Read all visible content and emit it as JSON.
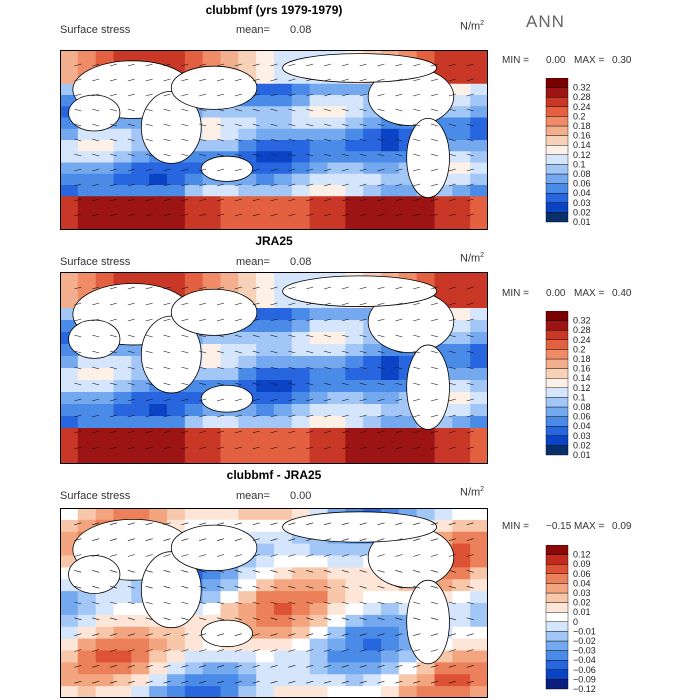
{
  "season": "ANN",
  "colormaps": {
    "pos": [
      "#08306b",
      "#0a44c4",
      "#2866e0",
      "#4a8be8",
      "#74a9f0",
      "#a2c6f6",
      "#d5e5fb",
      "#fdf0e6",
      "#f8d2b8",
      "#f3af8d",
      "#ef8b66",
      "#e36140",
      "#c93726",
      "#9c1414",
      "#7a0000"
    ],
    "diff": [
      "#0a1e80",
      "#0a44c4",
      "#2866e0",
      "#4a8be8",
      "#74a9f0",
      "#a2c6f6",
      "#d5e5fb",
      "#ffffff",
      "#fde6d8",
      "#f8c7aa",
      "#f3a57f",
      "#ec805a",
      "#dd5235",
      "#c22a1e",
      "#8a0808"
    ]
  },
  "chart_data": [
    {
      "type": "heatmap",
      "title": "clubbmf (yrs 1979-1979)",
      "variable": "Surface stress",
      "mean_label": "mean=",
      "mean": "0.08",
      "units": "N/m",
      "units_sup": "2",
      "min_label": "MIN =",
      "min": "0.00",
      "max_label": "MAX =",
      "max": "0.30",
      "colormap": "pos",
      "levels": [
        "0.01",
        "0.02",
        "0.03",
        "0.04",
        "0.06",
        "0.08",
        "0.1",
        "0.12",
        "0.14",
        "0.16",
        "0.18",
        "0.2",
        "0.24",
        "0.28",
        "0.32"
      ]
    },
    {
      "type": "heatmap",
      "title": "JRA25",
      "variable": "Surface stress",
      "mean_label": "mean=",
      "mean": "0.08",
      "units": "N/m",
      "units_sup": "2",
      "min_label": "MIN =",
      "min": "0.00",
      "max_label": "MAX =",
      "max": "0.40",
      "colormap": "pos",
      "levels": [
        "0.01",
        "0.02",
        "0.03",
        "0.04",
        "0.06",
        "0.08",
        "0.1",
        "0.12",
        "0.14",
        "0.16",
        "0.18",
        "0.2",
        "0.24",
        "0.28",
        "0.32"
      ]
    },
    {
      "type": "heatmap",
      "title": "clubbmf - JRA25",
      "variable": "Surface stress",
      "mean_label": "mean=",
      "mean": "0.00",
      "units": "N/m",
      "units_sup": "2",
      "min_label": "MIN =",
      "min": "−0.15",
      "max_label": "MAX =",
      "max": "0.09",
      "colormap": "diff",
      "levels": [
        "−0.12",
        "−0.09",
        "−0.06",
        "−0.04",
        "−0.03",
        "−0.02",
        "−0.01",
        "0",
        "0.01",
        "0.02",
        "0.03",
        "0.04",
        "0.06",
        "0.09",
        "0.12"
      ]
    }
  ]
}
